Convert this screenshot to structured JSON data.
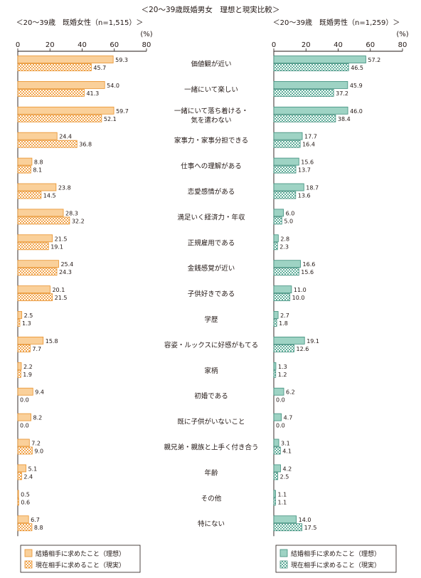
{
  "chart_data": {
    "type": "bar",
    "title": "＜20～39歳既婚男女　理想と現実比較＞",
    "unit_label": "(%)",
    "categories": [
      "価値観が近い",
      "一緒にいて楽しい",
      "一緒にいて落ち着ける・気を遣わない",
      "家事力・家事分担できる",
      "仕事への理解がある",
      "恋愛感情がある",
      "満足いく経済力・年収",
      "正規雇用である",
      "金銭感覚が近い",
      "子供好きである",
      "学歴",
      "容姿・ルックスに好感がもてる",
      "家柄",
      "初婚である",
      "既に子供がいないこと",
      "親兄弟・親族と上手く付き合う",
      "年齢",
      "その他",
      "特にない"
    ],
    "category_lines": [
      [
        "価値観が近い"
      ],
      [
        "一緒にいて楽しい"
      ],
      [
        "一緒にいて落ち着ける・",
        "気を遣わない"
      ],
      [
        "家事力・家事分担できる"
      ],
      [
        "仕事への理解がある"
      ],
      [
        "恋愛感情がある"
      ],
      [
        "満足いく経済力・年収"
      ],
      [
        "正規雇用である"
      ],
      [
        "金銭感覚が近い"
      ],
      [
        "子供好きである"
      ],
      [
        "学歴"
      ],
      [
        "容姿・ルックスに好感がもてる"
      ],
      [
        "家柄"
      ],
      [
        "初婚である"
      ],
      [
        "既に子供がいないこと"
      ],
      [
        "親兄弟・親族と上手く付き合う"
      ],
      [
        "年齢"
      ],
      [
        "その他"
      ],
      [
        "特にない"
      ]
    ],
    "panels": [
      {
        "side": "left",
        "heading": "＜20～39歳　既婚女性（n=1,515）＞",
        "xlim": [
          0,
          80
        ],
        "ticks": [
          0,
          20,
          40,
          60,
          80
        ],
        "colors": {
          "fill": "#FAD09A",
          "stroke": "#E8912B",
          "pattern_dot": "#F2A54D"
        },
        "series": [
          {
            "name": "結婚相手に求めたこと（理想）",
            "values": [
              59.3,
              54.0,
              59.7,
              24.4,
              8.8,
              23.8,
              28.3,
              21.5,
              25.4,
              20.1,
              2.5,
              15.8,
              2.2,
              9.4,
              8.2,
              7.2,
              5.1,
              0.5,
              6.7
            ],
            "labels": [
              "59.3",
              "54.0",
              "59.7",
              "24.4",
              "8.8",
              "23.8",
              "28.3",
              "21.5",
              "25.4",
              "20.1",
              "2.5",
              "15.8",
              "2.2",
              "9.4",
              "8.2",
              "7.2",
              "5.1",
              "0.5",
              "6.7"
            ]
          },
          {
            "name": "現在相手に求めること（現実）",
            "values": [
              45.7,
              41.3,
              52.1,
              36.8,
              8.1,
              14.5,
              32.2,
              19.1,
              24.3,
              21.5,
              1.3,
              7.7,
              1.9,
              0.0,
              0.0,
              9.0,
              2.4,
              0.6,
              8.8
            ],
            "labels": [
              "45.7",
              "41.3",
              "52.1",
              "36.8",
              "8.1",
              "14.5",
              "32.2",
              "19.1",
              "24.3",
              "21.5",
              "1.3",
              "7.7",
              "1.9",
              "0.0",
              "0.0",
              "9.0",
              "2.4",
              "0.6",
              "8.8"
            ]
          }
        ]
      },
      {
        "side": "right",
        "heading": "＜20～39歳　既婚男性（n=1,259）＞",
        "xlim": [
          0,
          80
        ],
        "ticks": [
          0,
          20,
          40,
          60,
          80
        ],
        "colors": {
          "fill": "#9ED3C4",
          "stroke": "#3E8E7C",
          "pattern_dot": "#5FAE9A"
        },
        "series": [
          {
            "name": "結婚相手に求めたこと（理想）",
            "values": [
              57.2,
              45.9,
              46.0,
              17.7,
              15.6,
              18.7,
              6.0,
              2.8,
              16.6,
              11.0,
              2.7,
              19.1,
              1.3,
              6.2,
              4.7,
              3.1,
              4.2,
              1.1,
              14.0
            ],
            "labels": [
              "57.2",
              "45.9",
              "46.0",
              "17.7",
              "15.6",
              "18.7",
              "6.0",
              "2.8",
              "16.6",
              "11.0",
              "2.7",
              "19.1",
              "1.3",
              "6.2",
              "4.7",
              "3.1",
              "4.2",
              "1.1",
              "14.0"
            ]
          },
          {
            "name": "現在相手に求めること（現実）",
            "values": [
              46.5,
              37.2,
              38.4,
              16.4,
              13.7,
              13.6,
              5.0,
              2.3,
              15.6,
              10.0,
              1.8,
              12.6,
              1.2,
              0.0,
              0.0,
              4.1,
              2.5,
              1.1,
              17.5
            ],
            "labels": [
              "46.5",
              "37.2",
              "38.4",
              "16.4",
              "13.7",
              "13.6",
              "5.0",
              "2.3",
              "15.6",
              "10.0",
              "1.8",
              "12.6",
              "1.2",
              "0.0",
              "0.0",
              "4.1",
              "2.5",
              "1.1",
              "17.5"
            ]
          }
        ]
      }
    ]
  }
}
